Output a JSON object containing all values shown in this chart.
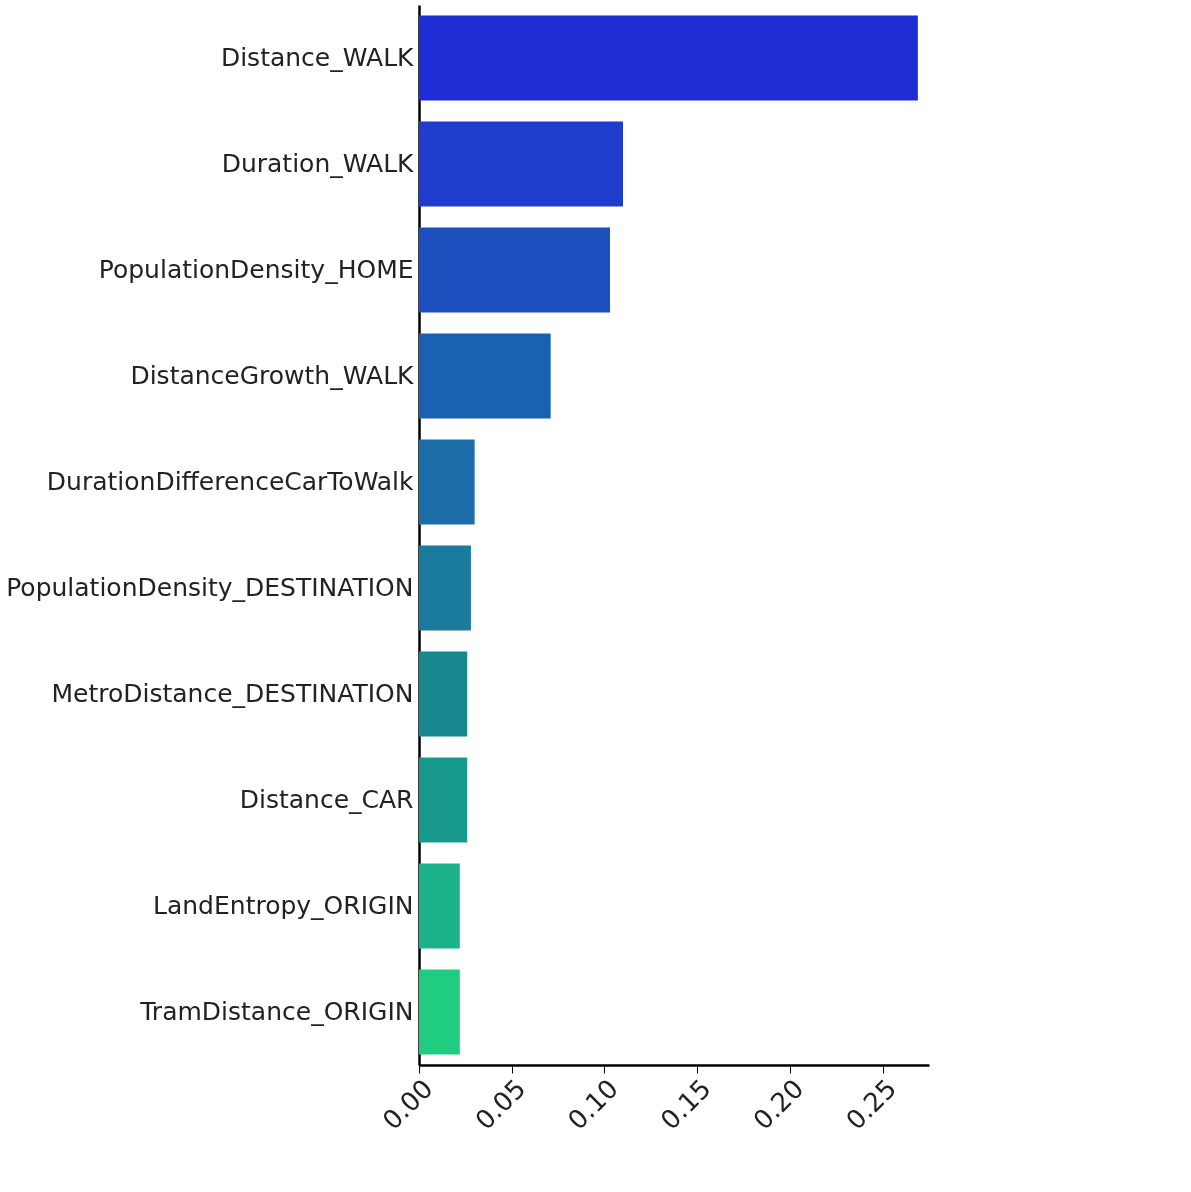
{
  "chart_data": {
    "type": "bar",
    "orientation": "horizontal",
    "categories": [
      "Distance_WALK",
      "Duration_WALK",
      "PopulationDensity_HOME",
      "DistanceGrowth_WALK",
      "DurationDifferenceCarToWalk",
      "PopulationDensity_DESTINATION",
      "MetroDistance_DESTINATION",
      "Distance_CAR",
      "LandEntropy_ORIGIN",
      "TramDistance_ORIGIN"
    ],
    "values": [
      0.269,
      0.11,
      0.103,
      0.071,
      0.03,
      0.028,
      0.026,
      0.026,
      0.022,
      0.022
    ],
    "colors": [
      "#1f2dd4",
      "#1f3ccc",
      "#1d4fbf",
      "#1b61b2",
      "#1b6ea8",
      "#1a7b9c",
      "#178890",
      "#179a8c",
      "#1cb38a",
      "#1fcc80"
    ],
    "xlim": [
      0,
      0.275
    ],
    "xticks": [
      {
        "value": 0,
        "label": "0.00"
      },
      {
        "value": 0.05,
        "label": "0.05"
      },
      {
        "value": 0.1,
        "label": "0.10"
      },
      {
        "value": 0.15,
        "label": "0.15"
      },
      {
        "value": 0.2,
        "label": "0.20"
      },
      {
        "value": 0.25,
        "label": "0.25"
      }
    ],
    "grid": false
  }
}
